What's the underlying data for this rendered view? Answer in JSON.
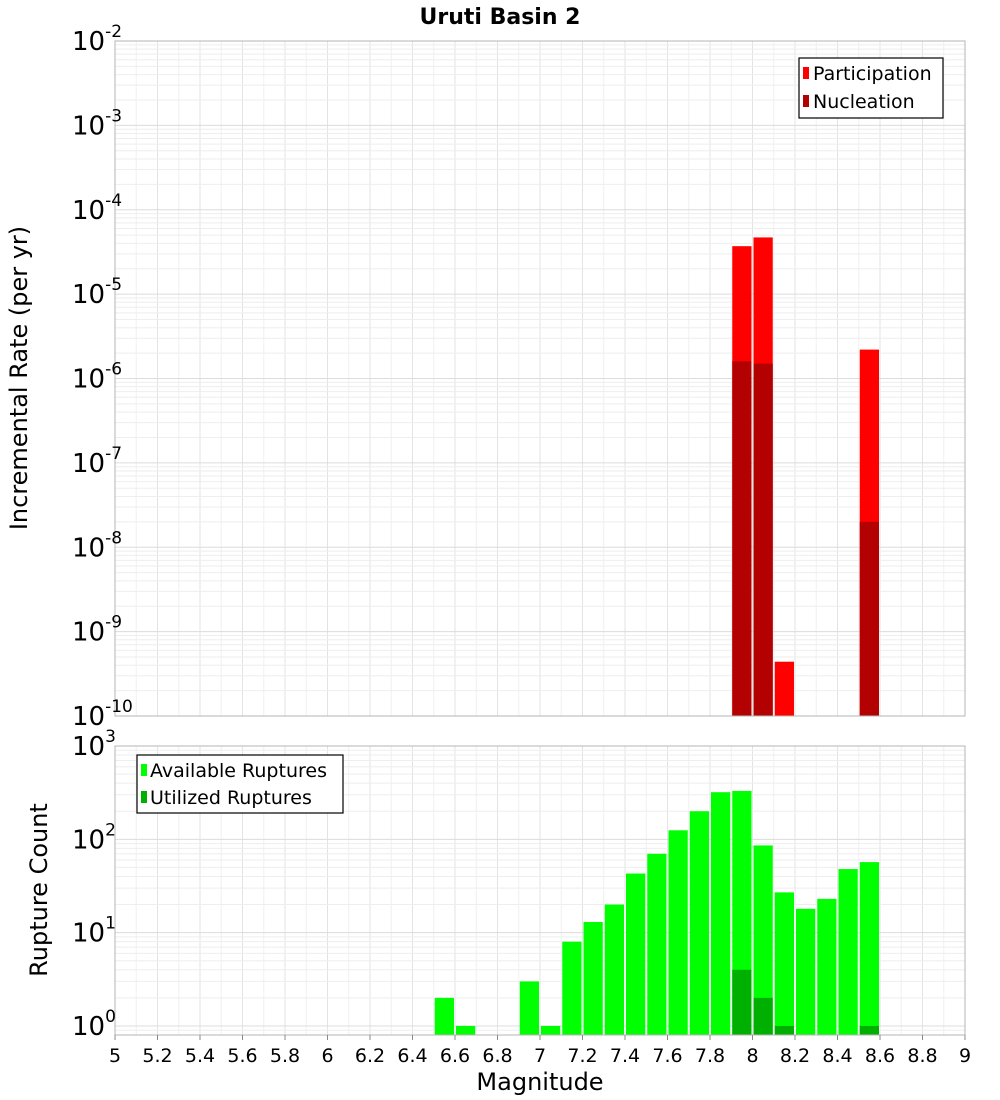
{
  "chart_data": [
    {
      "type": "bar",
      "id": "top",
      "title": "Uruti Basin 2",
      "xlabel": "",
      "ylabel": "Incremental Rate (per yr)",
      "yscale": "log",
      "ylim": [
        1e-10,
        0.01
      ],
      "xlim": [
        5,
        9
      ],
      "bar_width": 0.1,
      "y_ticks": [
        {
          "base": "10",
          "exp": "-10",
          "value": 1e-10
        },
        {
          "base": "10",
          "exp": "-9",
          "value": 1e-09
        },
        {
          "base": "10",
          "exp": "-8",
          "value": 1e-08
        },
        {
          "base": "10",
          "exp": "-7",
          "value": 1e-07
        },
        {
          "base": "10",
          "exp": "-6",
          "value": 1e-06
        },
        {
          "base": "10",
          "exp": "-5",
          "value": 1e-05
        },
        {
          "base": "10",
          "exp": "-4",
          "value": 0.0001
        },
        {
          "base": "10",
          "exp": "-3",
          "value": 0.001
        },
        {
          "base": "10",
          "exp": "-2",
          "value": 0.01
        }
      ],
      "grid": true,
      "legend": {
        "placement": "top-right"
      },
      "series": [
        {
          "name": "Participation",
          "color": "#ff0000",
          "points": [
            {
              "x": 7.95,
              "y": 3.7e-05
            },
            {
              "x": 8.05,
              "y": 4.7e-05
            },
            {
              "x": 8.15,
              "y": 4.4e-10
            },
            {
              "x": 8.55,
              "y": 2.2e-06
            }
          ]
        },
        {
          "name": "Nucleation",
          "color": "#b30000",
          "points": [
            {
              "x": 7.95,
              "y": 1.6e-06
            },
            {
              "x": 8.05,
              "y": 1.5e-06
            },
            {
              "x": 8.55,
              "y": 2e-08
            }
          ]
        }
      ]
    },
    {
      "type": "bar",
      "id": "bottom",
      "xlabel": "Magnitude",
      "ylabel": "Rupture Count",
      "yscale": "log",
      "ylim": [
        0.8,
        1000
      ],
      "xlim": [
        5,
        9
      ],
      "bar_width": 0.1,
      "x_ticks": [
        "5",
        "5.2",
        "5.4",
        "5.6",
        "5.8",
        "6",
        "6.2",
        "6.4",
        "6.6",
        "6.8",
        "7",
        "7.2",
        "7.4",
        "7.6",
        "7.8",
        "8",
        "8.2",
        "8.4",
        "8.6",
        "8.8",
        "9"
      ],
      "y_ticks": [
        {
          "base": "10",
          "exp": "0",
          "value": 1
        },
        {
          "base": "10",
          "exp": "1",
          "value": 10
        },
        {
          "base": "10",
          "exp": "2",
          "value": 100
        },
        {
          "base": "10",
          "exp": "3",
          "value": 1000
        }
      ],
      "grid": true,
      "legend": {
        "placement": "top-left"
      },
      "series": [
        {
          "name": "Available Ruptures",
          "color": "#00ff00",
          "points": [
            {
              "x": 6.55,
              "y": 2
            },
            {
              "x": 6.65,
              "y": 1
            },
            {
              "x": 6.95,
              "y": 3
            },
            {
              "x": 7.05,
              "y": 1
            },
            {
              "x": 7.15,
              "y": 8
            },
            {
              "x": 7.25,
              "y": 13
            },
            {
              "x": 7.35,
              "y": 20
            },
            {
              "x": 7.45,
              "y": 43
            },
            {
              "x": 7.55,
              "y": 70
            },
            {
              "x": 7.65,
              "y": 125
            },
            {
              "x": 7.75,
              "y": 200
            },
            {
              "x": 7.85,
              "y": 320
            },
            {
              "x": 7.95,
              "y": 330
            },
            {
              "x": 8.05,
              "y": 86
            },
            {
              "x": 8.15,
              "y": 27
            },
            {
              "x": 8.25,
              "y": 18
            },
            {
              "x": 8.35,
              "y": 23
            },
            {
              "x": 8.45,
              "y": 48
            },
            {
              "x": 8.55,
              "y": 57
            }
          ]
        },
        {
          "name": "Utilized Ruptures",
          "color": "#00b000",
          "points": [
            {
              "x": 7.95,
              "y": 4
            },
            {
              "x": 8.05,
              "y": 2
            },
            {
              "x": 8.15,
              "y": 1
            },
            {
              "x": 8.55,
              "y": 1
            }
          ]
        }
      ]
    }
  ]
}
